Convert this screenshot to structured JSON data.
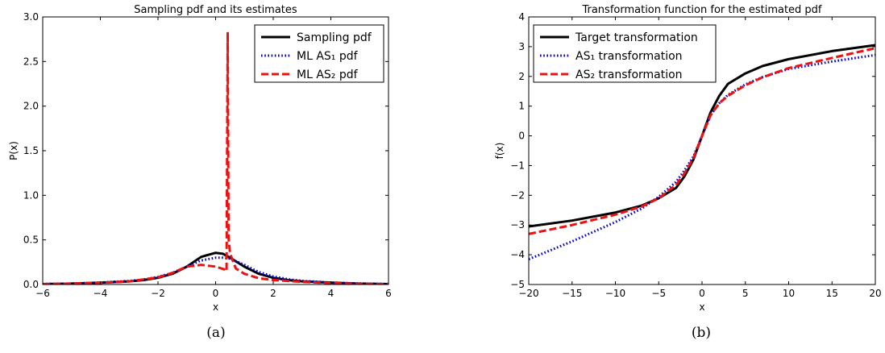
{
  "figure": {
    "captions": [
      "(a)",
      "(b)"
    ]
  },
  "chart_data": [
    {
      "type": "line",
      "title": "Sampling pdf and its estimates",
      "xlabel": "x",
      "ylabel": "P(x)",
      "xlim": [
        -6,
        6
      ],
      "ylim": [
        0,
        3
      ],
      "xticks": [
        -6,
        -4,
        -2,
        0,
        2,
        4,
        6
      ],
      "yticks": [
        0.0,
        0.5,
        1.0,
        1.5,
        2.0,
        2.5,
        3.0
      ],
      "xtick_labels": [
        "−6",
        "−4",
        "−2",
        "0",
        "2",
        "4",
        "6"
      ],
      "ytick_labels": [
        "0.0",
        "0.5",
        "1.0",
        "1.5",
        "2.0",
        "2.5",
        "3.0"
      ],
      "grid": false,
      "legend": {
        "placement": "top-right"
      },
      "series": [
        {
          "name": "Sampling pdf",
          "color": "#000000",
          "style": "solid",
          "x": [
            -6,
            -5,
            -4,
            -3,
            -2.5,
            -2,
            -1.5,
            -1,
            -0.5,
            0,
            0.25,
            0.5,
            1,
            1.5,
            2,
            2.5,
            3,
            4,
            5,
            6
          ],
          "y": [
            0.005,
            0.01,
            0.02,
            0.035,
            0.05,
            0.075,
            0.12,
            0.2,
            0.31,
            0.355,
            0.345,
            0.3,
            0.2,
            0.12,
            0.075,
            0.05,
            0.035,
            0.02,
            0.01,
            0.005
          ]
        },
        {
          "name": "ML AS₁ pdf",
          "color": "#0000cc",
          "style": "dotted",
          "x": [
            -6,
            -5,
            -4,
            -3,
            -2.5,
            -2,
            -1.5,
            -1,
            -0.5,
            0,
            0.25,
            0.5,
            1,
            1.5,
            2,
            2.5,
            3,
            4,
            5,
            6
          ],
          "y": [
            0.006,
            0.011,
            0.022,
            0.04,
            0.055,
            0.085,
            0.13,
            0.2,
            0.27,
            0.3,
            0.3,
            0.29,
            0.22,
            0.14,
            0.09,
            0.06,
            0.04,
            0.022,
            0.011,
            0.006
          ]
        },
        {
          "name": "ML AS₂ pdf",
          "color": "#ee1111",
          "style": "dashed",
          "x": [
            -6,
            -5,
            -4,
            -3,
            -2,
            -1.5,
            -1,
            -0.5,
            0,
            0.3,
            0.38,
            0.42,
            0.45,
            0.5,
            0.7,
            1,
            1.5,
            2,
            3,
            4,
            5,
            6
          ],
          "y": [
            0.005,
            0.01,
            0.018,
            0.035,
            0.08,
            0.13,
            0.2,
            0.22,
            0.2,
            0.17,
            0.15,
            2.83,
            0.52,
            0.35,
            0.18,
            0.12,
            0.07,
            0.05,
            0.03,
            0.015,
            0.008,
            0.004
          ]
        }
      ]
    },
    {
      "type": "line",
      "title": "Transformation function for the estimated pdf",
      "xlabel": "x",
      "ylabel": "f(x)",
      "xlim": [
        -20,
        20
      ],
      "ylim": [
        -5,
        4
      ],
      "xticks": [
        -20,
        -15,
        -10,
        -5,
        0,
        5,
        10,
        15,
        20
      ],
      "yticks": [
        -5,
        -4,
        -3,
        -2,
        -1,
        0,
        1,
        2,
        3,
        4
      ],
      "xtick_labels": [
        "−20",
        "−15",
        "−10",
        "−5",
        "0",
        "5",
        "10",
        "15",
        "20"
      ],
      "ytick_labels": [
        "−5",
        "−4",
        "−3",
        "−2",
        "−1",
        "0",
        "1",
        "2",
        "3",
        "4"
      ],
      "grid": false,
      "legend": {
        "placement": "top-left"
      },
      "series": [
        {
          "name": "Target transformation",
          "color": "#000000",
          "style": "solid",
          "x": [
            -20,
            -15,
            -10,
            -7,
            -5,
            -3,
            -2,
            -1,
            0,
            1,
            2,
            3,
            5,
            7,
            10,
            15,
            20
          ],
          "y": [
            -3.05,
            -2.85,
            -2.58,
            -2.35,
            -2.1,
            -1.75,
            -1.35,
            -0.8,
            0,
            0.8,
            1.35,
            1.75,
            2.1,
            2.35,
            2.58,
            2.85,
            3.05
          ]
        },
        {
          "name": "AS₁ transformation",
          "color": "#0000cc",
          "style": "dotted",
          "x": [
            -20,
            -15,
            -10,
            -7,
            -5,
            -3,
            -2,
            -1,
            0,
            1,
            2,
            3,
            5,
            7,
            10,
            15,
            20
          ],
          "y": [
            -4.15,
            -3.55,
            -2.9,
            -2.45,
            -2.05,
            -1.55,
            -1.15,
            -0.7,
            0,
            0.7,
            1.1,
            1.38,
            1.73,
            1.98,
            2.25,
            2.5,
            2.72
          ]
        },
        {
          "name": "AS₂ transformation",
          "color": "#ee1111",
          "style": "dashed",
          "x": [
            -20,
            -15,
            -10,
            -7,
            -5,
            -3,
            -2,
            -1,
            0,
            1,
            2,
            3,
            5,
            7,
            10,
            15,
            20
          ],
          "y": [
            -3.3,
            -3.0,
            -2.65,
            -2.38,
            -2.1,
            -1.65,
            -1.25,
            -0.75,
            0,
            0.7,
            1.1,
            1.35,
            1.7,
            1.97,
            2.28,
            2.62,
            2.95
          ]
        }
      ]
    }
  ]
}
